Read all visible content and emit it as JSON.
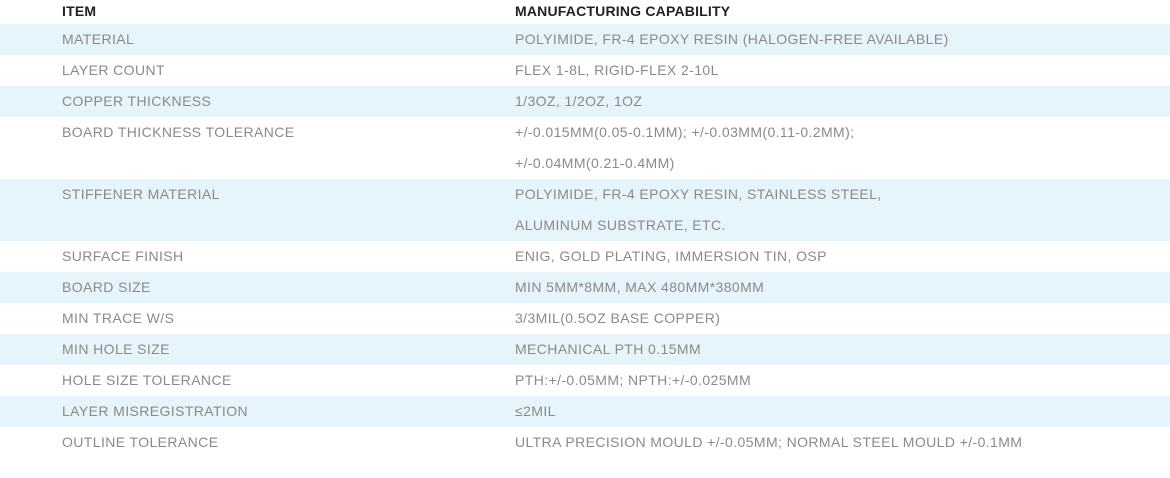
{
  "header": {
    "item": "ITEM",
    "capability": "MANUFACTURING CAPABILITY"
  },
  "rows": [
    {
      "item": "MATERIAL",
      "capability": [
        "POLYIMIDE, FR-4 EPOXY RESIN (HALOGEN-FREE AVAILABLE)"
      ]
    },
    {
      "item": "LAYER COUNT",
      "capability": [
        "FLEX 1-8L, RIGID-FLEX 2-10L"
      ]
    },
    {
      "item": "COPPER THICKNESS",
      "capability": [
        "1/3OZ, 1/2OZ, 1OZ"
      ]
    },
    {
      "item": "BOARD THICKNESS TOLERANCE",
      "capability": [
        "+/-0.015MM(0.05-0.1MM); +/-0.03MM(0.11-0.2MM);",
        "+/-0.04MM(0.21-0.4MM)"
      ]
    },
    {
      "item": "STIFFENER MATERIAL",
      "capability": [
        "POLYIMIDE, FR-4 EPOXY RESIN, STAINLESS STEEL,",
        "ALUMINUM SUBSTRATE, ETC."
      ]
    },
    {
      "item": "SURFACE FINISH",
      "capability": [
        "ENIG, GOLD PLATING, IMMERSION TIN, OSP"
      ]
    },
    {
      "item": "BOARD SIZE",
      "capability": [
        "MIN 5MM*8MM, MAX 480MM*380MM"
      ]
    },
    {
      "item": "MIN TRACE W/S",
      "capability": [
        "3/3MIL(0.5OZ BASE COPPER)"
      ]
    },
    {
      "item": "MIN HOLE SIZE",
      "capability": [
        "MECHANICAL PTH 0.15MM"
      ]
    },
    {
      "item": "HOLE SIZE TOLERANCE",
      "capability": [
        "PTH:+/-0.05MM; NPTH:+/-0.025MM"
      ]
    },
    {
      "item": "LAYER MISREGISTRATION",
      "capability": [
        "≤2MIL"
      ]
    },
    {
      "item": "OUTLINE TOLERANCE",
      "capability": [
        "ULTRA PRECISION MOULD +/-0.05MM; NORMAL STEEL MOULD +/-0.1MM"
      ]
    }
  ],
  "colors": {
    "shaded_row": "#e6f4fb",
    "header_text": "#222222",
    "body_text": "#8a8a8a"
  }
}
